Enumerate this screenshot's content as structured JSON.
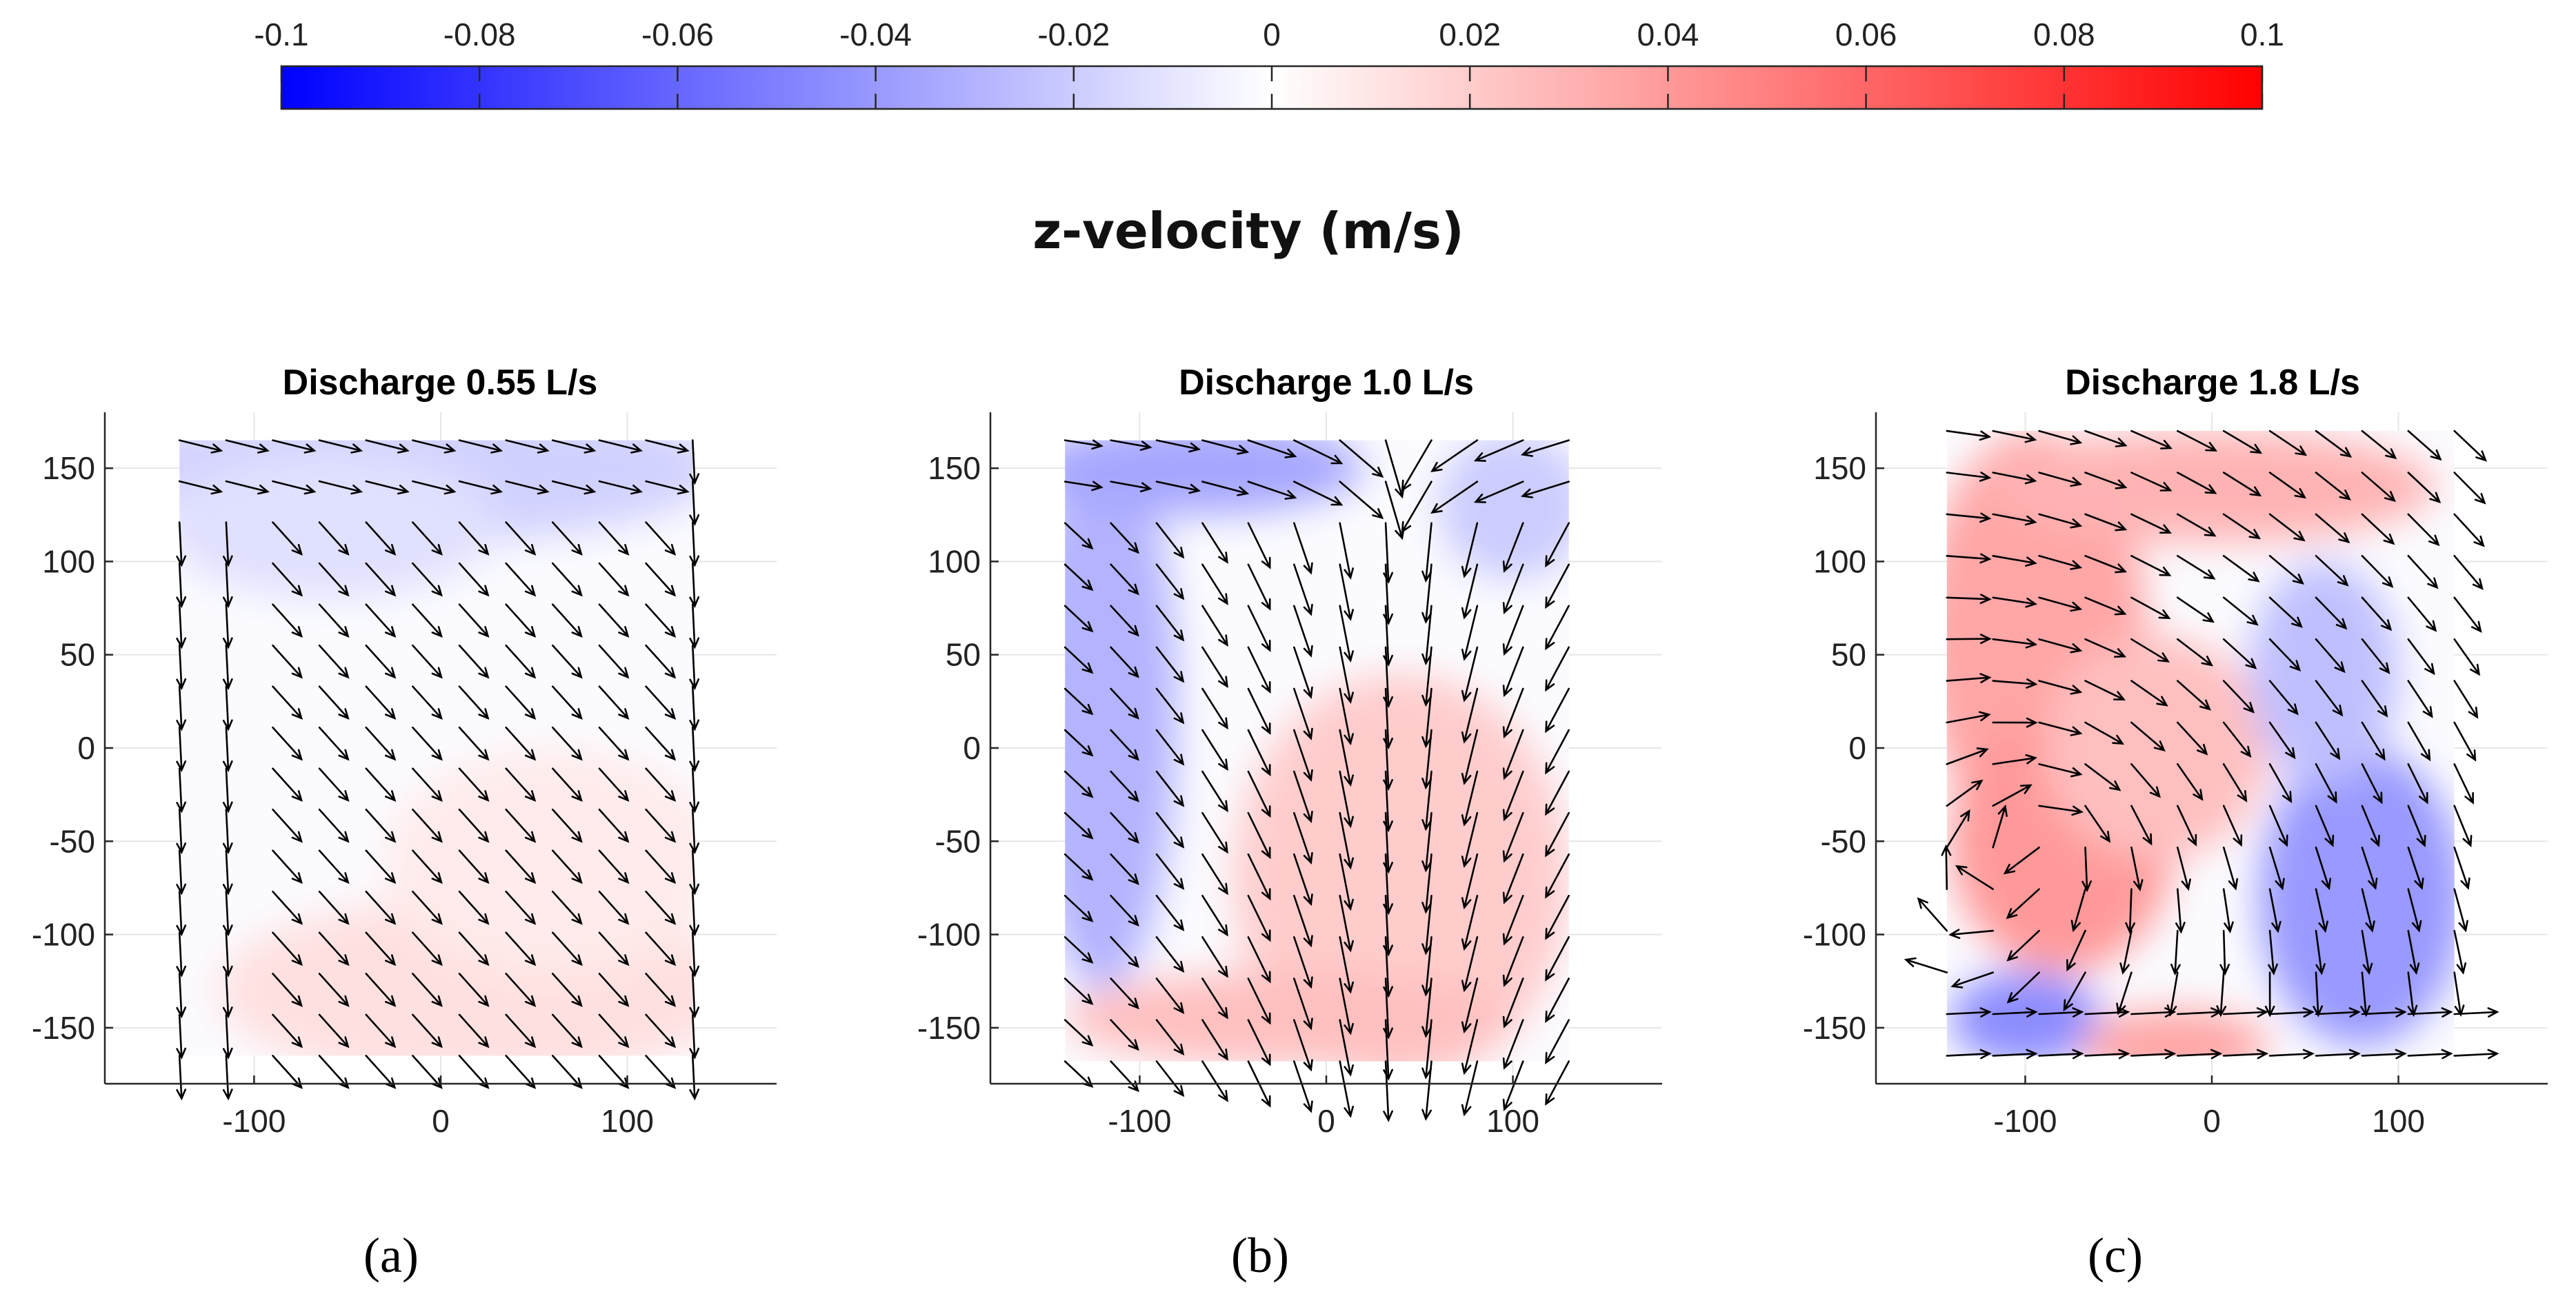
{
  "colorbar": {
    "title": "z-velocity (m/s)",
    "tick_labels": [
      "-0.1",
      "-0.08",
      "-0.06",
      "-0.04",
      "-0.02",
      "0",
      "0.02",
      "0.04",
      "0.06",
      "0.08",
      "0.1"
    ],
    "tick_values": [
      -0.1,
      -0.08,
      -0.06,
      -0.04,
      -0.02,
      0,
      0.02,
      0.04,
      0.06,
      0.08,
      0.1
    ],
    "range": [
      -0.1,
      0.1
    ],
    "colors": {
      "min": "#0000ff",
      "mid": "#ffffff",
      "max": "#ff0000"
    }
  },
  "chart_data": [
    {
      "type": "heatmap",
      "title": "Discharge 0.55 L/s",
      "panel_label": "(a)",
      "xlim": [
        -180,
        180
      ],
      "ylim": [
        -180,
        180
      ],
      "x_ticks": [
        -100,
        0,
        100
      ],
      "x_tick_labels": [
        "-100",
        "0",
        "100"
      ],
      "y_ticks": [
        150,
        100,
        50,
        0,
        -50,
        -100,
        -150
      ],
      "y_tick_labels": [
        "150",
        "100",
        "50",
        "0",
        "-50",
        "-100",
        "-150"
      ],
      "grid": true,
      "field_extent": {
        "x": [
          -140,
          135
        ],
        "y": [
          -165,
          165
        ]
      },
      "field_summary": "mostly near zero; slight negative (blue) near top, slight positive (pink) near bottom",
      "field_value_samples": {
        "top": -0.02,
        "center": 0.0,
        "bottom": 0.01
      },
      "vectors": "uniform diagonal flow toward lower-right, near-vertical along left wall",
      "overlay": "quiver"
    },
    {
      "type": "heatmap",
      "title": "Discharge 1.0 L/s",
      "panel_label": "(b)",
      "xlim": [
        -180,
        180
      ],
      "ylim": [
        -180,
        180
      ],
      "x_ticks": [
        -100,
        0,
        100
      ],
      "x_tick_labels": [
        "-100",
        "0",
        "100"
      ],
      "y_ticks": [
        150,
        100,
        50,
        0,
        -50,
        -100,
        -150
      ],
      "y_tick_labels": [
        "150",
        "100",
        "50",
        "0",
        "-50",
        "-100",
        "-150"
      ],
      "grid": true,
      "field_extent": {
        "x": [
          -140,
          130
        ],
        "y": [
          -168,
          165
        ]
      },
      "field_summary": "negative (blue) along left side and top, positive (pink) diagonal band toward bottom-center",
      "field_value_samples": {
        "left": -0.03,
        "center": 0.01,
        "bottom": 0.02
      },
      "vectors": "flow converging toward x about 40, strongly downward",
      "overlay": "quiver"
    },
    {
      "type": "heatmap",
      "title": "Discharge 1.8 L/s",
      "panel_label": "(c)",
      "xlim": [
        -180,
        180
      ],
      "ylim": [
        -180,
        180
      ],
      "x_ticks": [
        -100,
        0,
        100
      ],
      "x_tick_labels": [
        "-100",
        "0",
        "100"
      ],
      "y_ticks": [
        150,
        100,
        50,
        0,
        -50,
        -100,
        -150
      ],
      "y_tick_labels": [
        "150",
        "100",
        "50",
        "0",
        "-50",
        "-100",
        "-150"
      ],
      "grid": true,
      "field_extent": {
        "x": [
          -142,
          130
        ],
        "y": [
          -165,
          170
        ]
      },
      "field_summary": "positive (red) upper-left and center vortex, negative (blue) right side and bottom-left corner",
      "field_value_samples": {
        "upper_left": 0.03,
        "right": -0.04,
        "bottom_left": -0.04
      },
      "vectors": "rotating vortex centered near (-90, -40) with flow to lower-right",
      "overlay": "quiver"
    }
  ]
}
